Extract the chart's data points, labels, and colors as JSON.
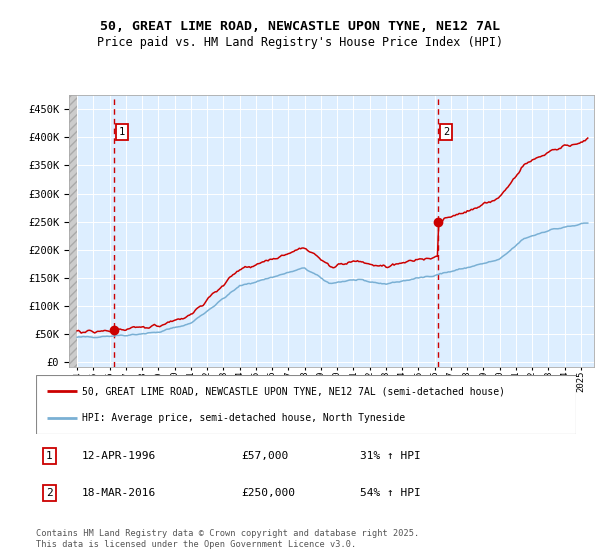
{
  "title_line1": "50, GREAT LIME ROAD, NEWCASTLE UPON TYNE, NE12 7AL",
  "title_line2": "Price paid vs. HM Land Registry's House Price Index (HPI)",
  "legend_line1": "50, GREAT LIME ROAD, NEWCASTLE UPON TYNE, NE12 7AL (semi-detached house)",
  "legend_line2": "HPI: Average price, semi-detached house, North Tyneside",
  "sale1_date": "12-APR-1996",
  "sale1_price": "£57,000",
  "sale1_hpi": "31% ↑ HPI",
  "sale2_date": "18-MAR-2016",
  "sale2_price": "£250,000",
  "sale2_hpi": "54% ↑ HPI",
  "sale1_year": 1996.28,
  "sale2_year": 2016.21,
  "sale1_value": 57000,
  "sale2_value": 250000,
  "red_color": "#cc0000",
  "blue_color": "#7ab0d4",
  "bg_color": "#ddeeff",
  "grid_color": "#ffffff",
  "dashed_color": "#cc0000",
  "yticks": [
    0,
    50000,
    100000,
    150000,
    200000,
    250000,
    300000,
    350000,
    400000,
    450000
  ],
  "ylim": [
    -8000,
    475000
  ],
  "xlim_start": 1993.5,
  "xlim_end": 2025.8,
  "footnote": "Contains HM Land Registry data © Crown copyright and database right 2025.\nThis data is licensed under the Open Government Licence v3.0.",
  "background_color": "#ffffff"
}
